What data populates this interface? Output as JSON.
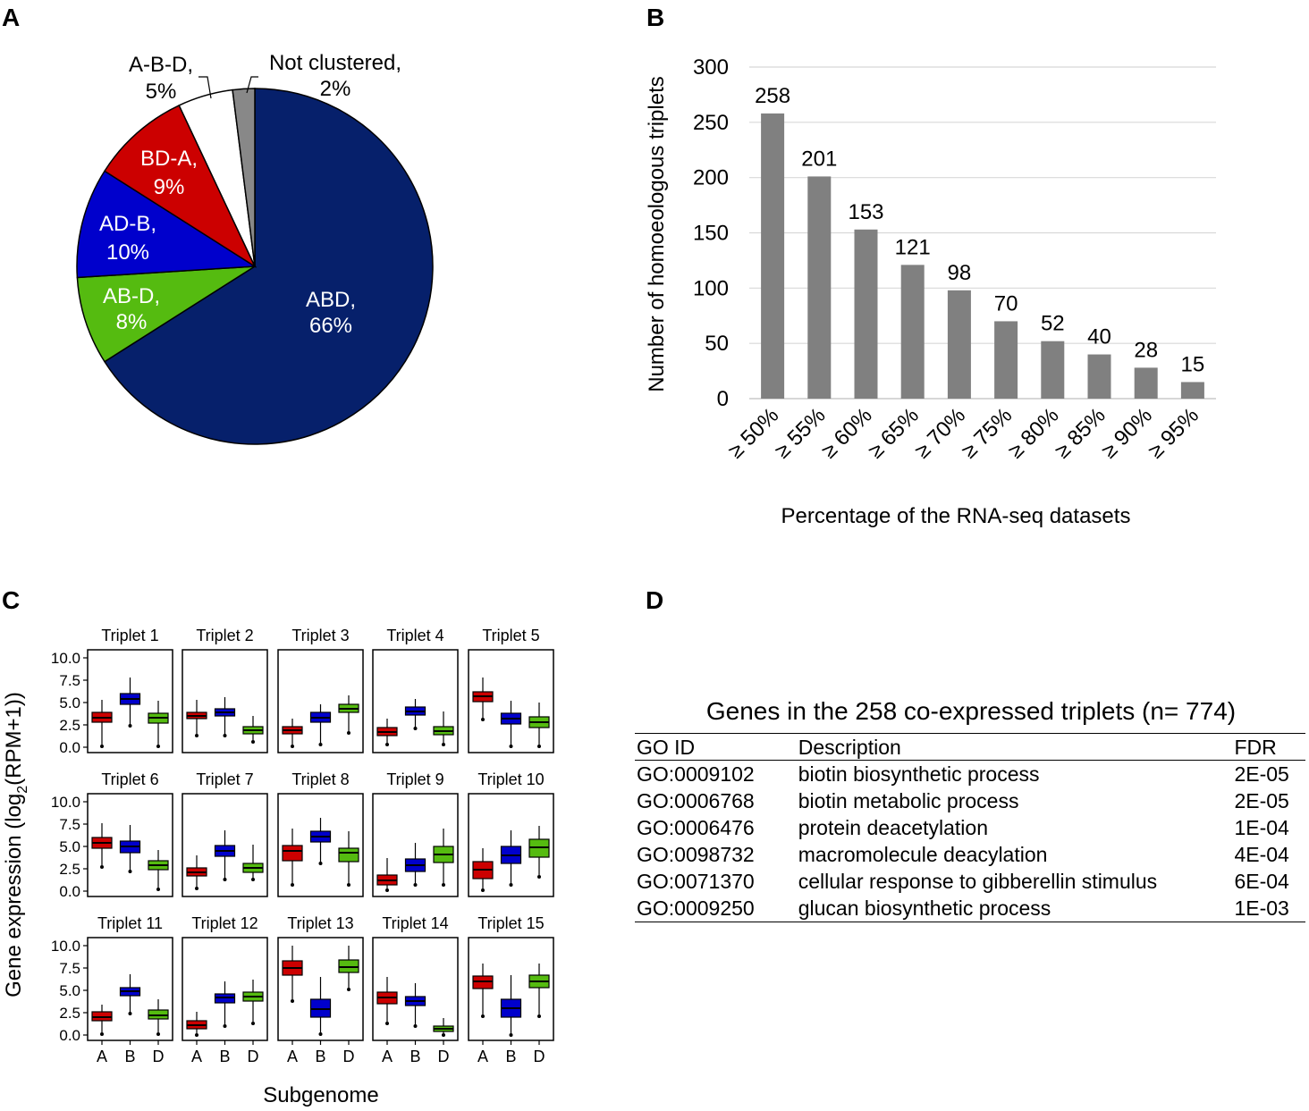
{
  "panels": {
    "a": "A",
    "b": "B",
    "c": "C",
    "d": "D"
  },
  "colors": {
    "navy": "#06206b",
    "red": "#cc0000",
    "blue": "#0000cc",
    "green": "#55bb10",
    "white": "#ffffff",
    "gray": "#888888",
    "bar": "#808080",
    "grid": "#d8d8d8"
  },
  "chart_data": [
    {
      "type": "pie",
      "panel": "A",
      "slices": [
        {
          "name": "ABD",
          "value": 66,
          "label1": "ABD,",
          "label2": "66%",
          "color": "#06206b"
        },
        {
          "name": "AB-D",
          "value": 8,
          "label1": "AB-D,",
          "label2": "8%",
          "color": "#55bb10"
        },
        {
          "name": "AD-B",
          "value": 10,
          "label1": "AD-B,",
          "label2": "10%",
          "color": "#0000cc"
        },
        {
          "name": "BD-A",
          "value": 9,
          "label1": "BD-A,",
          "label2": "9%",
          "color": "#cc0000"
        },
        {
          "name": "A-B-D",
          "value": 5,
          "label1": "A-B-D,",
          "label2": "5%",
          "color": "#ffffff"
        },
        {
          "name": "Not clustered",
          "value": 2,
          "label1": "Not clustered,",
          "label2": "2%",
          "color": "#888888"
        }
      ]
    },
    {
      "type": "bar",
      "panel": "B",
      "categories": [
        "≥ 50%",
        "≥ 55%",
        "≥ 60%",
        "≥ 65%",
        "≥ 70%",
        "≥ 75%",
        "≥ 80%",
        "≥ 85%",
        "≥ 90%",
        "≥ 95%"
      ],
      "values": [
        258,
        201,
        153,
        121,
        98,
        70,
        52,
        40,
        28,
        15
      ],
      "ylabel": "Number of homoeologous triplets",
      "xlabel": "Percentage of the RNA-seq datasets",
      "ylim": [
        0,
        300
      ],
      "yticks": [
        0,
        50,
        100,
        150,
        200,
        250,
        300
      ],
      "grid": true
    },
    {
      "type": "boxplot",
      "panel": "C",
      "ylabel_main": "Gene expression (log",
      "ylabel_sub": "2",
      "ylabel_end": "(RPM+1))",
      "xlabel": "Subgenome",
      "groups": [
        "A",
        "B",
        "D"
      ],
      "yticks": [
        "0.0",
        "2.5",
        "5.0",
        "7.5",
        "10.0"
      ],
      "ylim": [
        0,
        10.5
      ],
      "triplets": [
        {
          "title": "Triplet 1",
          "boxes": [
            [
              0.3,
              2.8,
              3.3,
              3.9,
              5.3
            ],
            [
              2.6,
              4.8,
              5.4,
              6.0,
              7.8
            ],
            [
              0.3,
              2.7,
              3.3,
              3.8,
              5.2
            ]
          ]
        },
        {
          "title": "Triplet 2",
          "boxes": [
            [
              1.5,
              3.2,
              3.5,
              3.9,
              5.3
            ],
            [
              1.5,
              3.5,
              3.9,
              4.3,
              5.6
            ],
            [
              0.8,
              1.5,
              1.9,
              2.3,
              3.5
            ]
          ]
        },
        {
          "title": "Triplet 3",
          "boxes": [
            [
              0.3,
              1.5,
              1.9,
              2.3,
              3.2
            ],
            [
              0.5,
              2.8,
              3.3,
              3.9,
              4.8
            ],
            [
              1.8,
              3.9,
              4.3,
              4.8,
              5.8
            ]
          ]
        },
        {
          "title": "Triplet 4",
          "boxes": [
            [
              0.5,
              1.3,
              1.7,
              2.2,
              3.2
            ],
            [
              2.3,
              3.6,
              4.0,
              4.5,
              5.4
            ],
            [
              0.5,
              1.4,
              1.8,
              2.3,
              4.0
            ]
          ]
        },
        {
          "title": "Triplet 5",
          "boxes": [
            [
              3.3,
              5.1,
              5.7,
              6.2,
              7.8
            ],
            [
              0.3,
              2.6,
              3.2,
              3.8,
              5.2
            ],
            [
              0.3,
              2.2,
              2.8,
              3.4,
              5.0
            ]
          ]
        },
        {
          "title": "Triplet 6",
          "boxes": [
            [
              2.9,
              4.8,
              5.4,
              6.0,
              7.6
            ],
            [
              2.4,
              4.3,
              5.0,
              5.6,
              7.4
            ],
            [
              0.4,
              2.4,
              2.9,
              3.4,
              4.6
            ]
          ]
        },
        {
          "title": "Triplet 7",
          "boxes": [
            [
              0.5,
              1.7,
              2.1,
              2.6,
              4.0
            ],
            [
              1.5,
              3.9,
              4.5,
              5.1,
              6.8
            ],
            [
              1.5,
              2.1,
              2.6,
              3.1,
              5.2
            ]
          ]
        },
        {
          "title": "Triplet 8",
          "boxes": [
            [
              0.9,
              3.4,
              4.5,
              5.1,
              7.0
            ],
            [
              3.3,
              5.5,
              6.1,
              6.7,
              8.2
            ],
            [
              0.9,
              3.3,
              4.3,
              4.8,
              6.7
            ]
          ]
        },
        {
          "title": "Triplet 9",
          "boxes": [
            [
              0.3,
              0.7,
              1.2,
              1.8,
              3.7
            ],
            [
              0.9,
              2.2,
              2.9,
              3.6,
              5.4
            ],
            [
              0.9,
              3.2,
              4.1,
              5.0,
              7.0
            ]
          ]
        },
        {
          "title": "Triplet 10",
          "boxes": [
            [
              0.3,
              1.4,
              2.4,
              3.3,
              4.8
            ],
            [
              0.9,
              3.1,
              4.0,
              5.0,
              6.8
            ],
            [
              1.8,
              3.8,
              4.9,
              5.8,
              7.3
            ]
          ]
        },
        {
          "title": "Triplet 11",
          "boxes": [
            [
              0.3,
              1.6,
              2.0,
              2.6,
              3.4
            ],
            [
              2.6,
              4.4,
              4.9,
              5.3,
              6.8
            ],
            [
              0.3,
              1.8,
              2.2,
              2.8,
              4.0
            ]
          ]
        },
        {
          "title": "Triplet 12",
          "boxes": [
            [
              0.2,
              0.7,
              1.1,
              1.6,
              2.6
            ],
            [
              1.2,
              3.6,
              4.2,
              4.6,
              6.0
            ],
            [
              1.5,
              3.8,
              4.3,
              4.8,
              6.2
            ]
          ]
        },
        {
          "title": "Triplet 13",
          "boxes": [
            [
              4.0,
              6.7,
              7.5,
              8.3,
              10.0
            ],
            [
              0.3,
              2.0,
              2.9,
              4.0,
              6.5
            ],
            [
              5.3,
              7.0,
              7.6,
              8.4,
              10.0
            ]
          ]
        },
        {
          "title": "Triplet 14",
          "boxes": [
            [
              1.5,
              3.5,
              4.2,
              4.8,
              6.5
            ],
            [
              1.2,
              3.3,
              3.8,
              4.3,
              5.8
            ],
            [
              0.2,
              0.4,
              0.7,
              1.0,
              1.9
            ]
          ]
        },
        {
          "title": "Triplet 15",
          "boxes": [
            [
              2.3,
              5.2,
              6.0,
              6.6,
              8.0
            ],
            [
              0.2,
              2.0,
              3.0,
              4.0,
              6.7
            ],
            [
              2.3,
              5.3,
              6.0,
              6.7,
              8.0
            ]
          ]
        }
      ]
    },
    {
      "type": "table",
      "panel": "D",
      "title": "Genes in the 258 co-expressed triplets (n= 774)",
      "columns": [
        "GO ID",
        "Description",
        "FDR"
      ],
      "rows": [
        [
          "GO:0009102",
          "biotin biosynthetic process",
          "2E-05"
        ],
        [
          "GO:0006768",
          "biotin metabolic process",
          "2E-05"
        ],
        [
          "GO:0006476",
          "protein deacetylation",
          "1E-04"
        ],
        [
          "GO:0098732",
          "macromolecule deacylation",
          "4E-04"
        ],
        [
          "GO:0071370",
          "cellular response to gibberellin stimulus",
          "6E-04"
        ],
        [
          "GO:0009250",
          "glucan biosynthetic process",
          "1E-03"
        ]
      ]
    }
  ]
}
